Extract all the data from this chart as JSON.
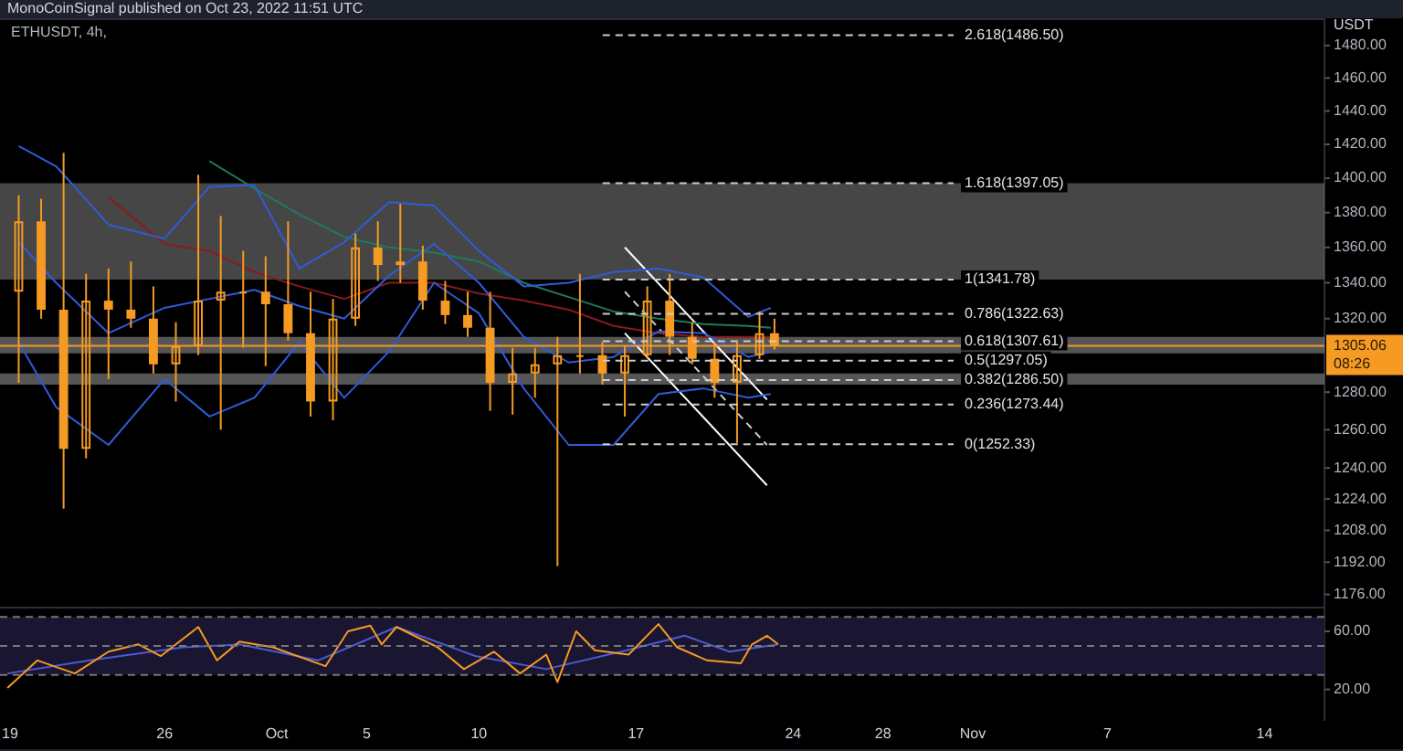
{
  "chart_data": [
    {
      "type": "candlestick",
      "title": "ETHUSDT, 4h,",
      "subtitle": "MonoCoinSignal published on Oct 23, 2022 11:51 UTC",
      "ylabel": "USDT",
      "log": true,
      "tick_labels": "y",
      "color": "#f59a23",
      "x": [
        "2022-09-19T12:00",
        "2022-09-20T12:00",
        "2022-09-21T12:00",
        "2022-09-22T12:00",
        "2022-09-23T12:00",
        "2022-09-24T12:00",
        "2022-09-25T12:00",
        "2022-09-26T12:00",
        "2022-09-27T12:00",
        "2022-09-28T12:00",
        "2022-09-29T12:00",
        "2022-09-30T12:00",
        "2022-10-01T12:00",
        "2022-10-02T12:00",
        "2022-10-03T12:00",
        "2022-10-04T12:00",
        "2022-10-05T12:00",
        "2022-10-06T12:00",
        "2022-10-07T12:00",
        "2022-10-08T12:00",
        "2022-10-09T12:00",
        "2022-10-10T12:00",
        "2022-10-11T12:00",
        "2022-10-12T12:00",
        "2022-10-13T12:00",
        "2022-10-14T12:00",
        "2022-10-15T12:00",
        "2022-10-16T12:00",
        "2022-10-17T12:00",
        "2022-10-18T12:00",
        "2022-10-19T12:00",
        "2022-10-20T12:00",
        "2022-10-21T12:00",
        "2022-10-22T12:00",
        "2022-10-23T04:00"
      ],
      "ohlc": [
        [
          1335,
          1390,
          1285,
          1375
        ],
        [
          1375,
          1388,
          1320,
          1325
        ],
        [
          1325,
          1415,
          1219,
          1250
        ],
        [
          1250,
          1345,
          1245,
          1330
        ],
        [
          1330,
          1348,
          1287,
          1325
        ],
        [
          1325,
          1352,
          1315,
          1320
        ],
        [
          1320,
          1338,
          1290,
          1295
        ],
        [
          1295,
          1318,
          1275,
          1305
        ],
        [
          1305,
          1402,
          1300,
          1330
        ],
        [
          1330,
          1378,
          1260,
          1335
        ],
        [
          1335,
          1358,
          1304,
          1335
        ],
        [
          1335,
          1355,
          1294,
          1328
        ],
        [
          1328,
          1375,
          1308,
          1312
        ],
        [
          1312,
          1335,
          1267,
          1275
        ],
        [
          1275,
          1331,
          1265,
          1320
        ],
        [
          1320,
          1368,
          1316,
          1360
        ],
        [
          1360,
          1375,
          1341,
          1350
        ],
        [
          1350,
          1385,
          1340,
          1352
        ],
        [
          1352,
          1361,
          1325,
          1330
        ],
        [
          1330,
          1341,
          1317,
          1322
        ],
        [
          1322,
          1335,
          1310,
          1315
        ],
        [
          1315,
          1335,
          1270,
          1285
        ],
        [
          1285,
          1304,
          1268,
          1290
        ],
        [
          1290,
          1304,
          1277,
          1295
        ],
        [
          1295,
          1310,
          1190,
          1300
        ],
        [
          1300,
          1345,
          1290,
          1300
        ],
        [
          1300,
          1307,
          1284,
          1290
        ],
        [
          1290,
          1305,
          1267,
          1300
        ],
        [
          1300,
          1338,
          1298,
          1330
        ],
        [
          1330,
          1345,
          1300,
          1310
        ],
        [
          1310,
          1318,
          1295,
          1298
        ],
        [
          1298,
          1307,
          1277,
          1285
        ],
        [
          1285,
          1307,
          1253,
          1300
        ],
        [
          1300,
          1324,
          1298,
          1312
        ],
        [
          1312,
          1320,
          1303,
          1305.06
        ]
      ],
      "series": [
        {
          "type": "line",
          "color": "#2f5bd8",
          "x": [
            "2022-09-19T12:00",
            "2022-09-21T04:00",
            "2022-09-23T12:00",
            "2022-09-26T00:00",
            "2022-09-28T00:00",
            "2022-09-30T00:00",
            "2022-10-02T00:00",
            "2022-10-04T00:00",
            "2022-10-06T00:00",
            "2022-10-08T00:00",
            "2022-10-10T00:00",
            "2022-10-12T00:00",
            "2022-10-14T00:00",
            "2022-10-16T00:00",
            "2022-10-18T00:00",
            "2022-10-20T00:00",
            "2022-10-22T00:00",
            "2022-10-23T00:00"
          ],
          "values": [
            1419,
            1407,
            1373,
            1365,
            1395,
            1396,
            1348,
            1363,
            1386,
            1384,
            1358,
            1338,
            1340,
            1346,
            1348,
            1343,
            1321,
            1326
          ]
        },
        {
          "type": "line",
          "color": "#2f5bd8",
          "x": [
            "2022-09-19T12:00",
            "2022-09-21T04:00",
            "2022-09-23T12:00",
            "2022-09-26T00:00",
            "2022-09-28T00:00",
            "2022-09-30T00:00",
            "2022-10-02T00:00",
            "2022-10-04T00:00",
            "2022-10-06T00:00",
            "2022-10-08T00:00",
            "2022-10-10T00:00",
            "2022-10-12T00:00",
            "2022-10-14T00:00",
            "2022-10-16T00:00",
            "2022-10-18T00:00",
            "2022-10-20T00:00",
            "2022-10-22T00:00",
            "2022-10-23T00:00"
          ],
          "values": [
            1363,
            1340,
            1312,
            1326,
            1331,
            1336,
            1327,
            1320,
            1344,
            1362,
            1340,
            1310,
            1296,
            1299,
            1313,
            1312,
            1299,
            1302
          ]
        },
        {
          "type": "line",
          "color": "#2f5bd8",
          "x": [
            "2022-09-19T12:00",
            "2022-09-21T04:00",
            "2022-09-23T12:00",
            "2022-09-26T00:00",
            "2022-09-28T00:00",
            "2022-09-30T00:00",
            "2022-10-02T00:00",
            "2022-10-04T00:00",
            "2022-10-06T00:00",
            "2022-10-08T00:00",
            "2022-10-10T00:00",
            "2022-10-12T00:00",
            "2022-10-14T00:00",
            "2022-10-16T00:00",
            "2022-10-18T00:00",
            "2022-10-20T00:00",
            "2022-10-22T00:00",
            "2022-10-23T00:00"
          ],
          "values": [
            1307,
            1272,
            1252,
            1287,
            1267,
            1277,
            1307,
            1277,
            1302,
            1340,
            1323,
            1282,
            1252,
            1252,
            1279,
            1282,
            1277,
            1279
          ]
        },
        {
          "type": "line",
          "color": "#8b1a1a",
          "x": [
            "2022-09-23T12:00",
            "2022-09-26T00:00",
            "2022-09-28T00:00",
            "2022-09-30T00:00",
            "2022-10-02T00:00",
            "2022-10-04T00:00",
            "2022-10-06T00:00",
            "2022-10-08T00:00",
            "2022-10-10T00:00",
            "2022-10-12T00:00",
            "2022-10-14T00:00",
            "2022-10-16T00:00",
            "2022-10-18T00:00",
            "2022-10-20T00:00",
            "2022-10-22T00:00",
            "2022-10-23T00:00"
          ],
          "values": [
            1389,
            1362,
            1358,
            1346,
            1338,
            1331,
            1340,
            1340,
            1334,
            1330,
            1325,
            1316,
            1312,
            1310,
            1310,
            1310
          ]
        },
        {
          "type": "line",
          "color": "#1e7a5a",
          "x": [
            "2022-09-28T00:00",
            "2022-09-30T00:00",
            "2022-10-02T00:00",
            "2022-10-04T00:00",
            "2022-10-06T00:00",
            "2022-10-08T00:00",
            "2022-10-10T00:00",
            "2022-10-12T00:00",
            "2022-10-14T00:00",
            "2022-10-16T00:00",
            "2022-10-18T00:00",
            "2022-10-20T00:00",
            "2022-10-22T00:00",
            "2022-10-23T00:00"
          ],
          "values": [
            1410,
            1394,
            1379,
            1366,
            1360,
            1357,
            1352,
            1340,
            1332,
            1324,
            1320,
            1317,
            1316,
            1315
          ]
        },
        {
          "type": "line",
          "color": "#ffffff",
          "x": [
            "2022-10-16T12:00",
            "2022-10-22T20:00"
          ],
          "values": [
            1360,
            1276
          ]
        },
        {
          "type": "line",
          "color": "#ffffff",
          "x": [
            "2022-10-16T12:00",
            "2022-10-22T20:00"
          ],
          "values": [
            1312,
            1231
          ]
        },
        {
          "type": "line",
          "color": "#cccccc",
          "line_style": "dashed",
          "x": [
            "2022-10-16T12:00",
            "2022-10-22T20:00"
          ],
          "values": [
            1335,
            1252
          ]
        }
      ],
      "xlim": [
        "2022-09-18T16:00",
        "2022-11-16T16:00"
      ],
      "ylim": [
        1170,
        1497
      ],
      "yticks": [
        {
          "value": 1176,
          "label": "1176.00"
        },
        {
          "value": 1192,
          "label": "1192.00"
        },
        {
          "value": 1208,
          "label": "1208.00"
        },
        {
          "value": 1224,
          "label": "1224.00"
        },
        {
          "value": 1240,
          "label": "1240.00"
        },
        {
          "value": 1260,
          "label": "1260.00"
        },
        {
          "value": 1280,
          "label": "1280.00"
        },
        {
          "value": 1320,
          "label": "1320.00"
        },
        {
          "value": 1340,
          "label": "1340.00"
        },
        {
          "value": 1360,
          "label": "1360.00"
        },
        {
          "value": 1380,
          "label": "1380.00"
        },
        {
          "value": 1400,
          "label": "1400.00"
        },
        {
          "value": 1420,
          "label": "1420.00"
        },
        {
          "value": 1440,
          "label": "1440.00"
        },
        {
          "value": 1460,
          "label": "1460.00"
        },
        {
          "value": 1480,
          "label": "1480.00"
        }
      ],
      "ref_lines": [
        {
          "axis": "y",
          "value": 1486.5,
          "label": "2.618(1486.50)",
          "color": "#cccccc",
          "line_style": "dashed"
        },
        {
          "axis": "y",
          "value": 1397.05,
          "label": "1.618(1397.05)",
          "color": "#cccccc",
          "line_style": "dashed"
        },
        {
          "axis": "y",
          "value": 1341.78,
          "label": "1(1341.78)",
          "color": "#cccccc",
          "line_style": "dashed"
        },
        {
          "axis": "y",
          "value": 1322.63,
          "label": "0.786(1322.63)",
          "color": "#cccccc",
          "line_style": "dashed"
        },
        {
          "axis": "y",
          "value": 1307.61,
          "label": "0.618(1307.61)",
          "color": "#cccccc",
          "line_style": "dashed"
        },
        {
          "axis": "y",
          "value": 1297.05,
          "label": "0.5(1297.05)",
          "color": "#cccccc",
          "line_style": "dashed"
        },
        {
          "axis": "y",
          "value": 1286.5,
          "label": "0.382(1286.50)",
          "color": "#cccccc",
          "line_style": "dashed"
        },
        {
          "axis": "y",
          "value": 1273.44,
          "label": "0.236(1273.44)",
          "color": "#cccccc",
          "line_style": "dashed"
        },
        {
          "axis": "y",
          "value": 1252.33,
          "label": "0(1252.33)",
          "color": "#cccccc",
          "line_style": "dashed"
        },
        {
          "axis": "y",
          "value": 1305.06,
          "label": "1305.06",
          "color": "#f59a23",
          "line_style": "solid"
        }
      ],
      "bands": [
        {
          "axis": "y",
          "from": 1341.78,
          "to": 1397.05,
          "color": "#808080"
        },
        {
          "axis": "y",
          "from": 1301,
          "to": 1310,
          "color": "#9a9a9a"
        },
        {
          "axis": "y",
          "from": 1284,
          "to": 1290,
          "color": "#9a9a9a"
        }
      ],
      "annotations": [
        "08:26"
      ]
    },
    {
      "type": "line",
      "series": [
        {
          "color": "#f59a23",
          "x": [
            "2022-09-19T00:00",
            "2022-09-20T08:00",
            "2022-09-22T00:00",
            "2022-09-23T12:00",
            "2022-09-24T20:00",
            "2022-09-25T20:00",
            "2022-09-27T12:00",
            "2022-09-28T08:00",
            "2022-09-29T08:00",
            "2022-09-30T20:00",
            "2022-10-03T04:00",
            "2022-10-04T04:00",
            "2022-10-05T04:00",
            "2022-10-05T16:00",
            "2022-10-06T08:00",
            "2022-10-08T04:00",
            "2022-10-09T08:00",
            "2022-10-10T16:00",
            "2022-10-11T20:00",
            "2022-10-13T00:00",
            "2022-10-13T12:00",
            "2022-10-14T08:00",
            "2022-10-15T04:00",
            "2022-10-16T16:00",
            "2022-10-18T00:00",
            "2022-10-18T20:00",
            "2022-10-20T04:00",
            "2022-10-21T16:00",
            "2022-10-22T04:00",
            "2022-10-22T20:00",
            "2022-10-23T08:00"
          ],
          "values": [
            21,
            40,
            31,
            46,
            51,
            43,
            63,
            40,
            53,
            49,
            36,
            60,
            64,
            51,
            63,
            49,
            34,
            46,
            31,
            44,
            25,
            60,
            47,
            44,
            65,
            49,
            40,
            38,
            51,
            57,
            51
          ]
        },
        {
          "color": "#4a5bd4",
          "x": [
            "2022-09-19T00:00",
            "2022-09-22T16:00",
            "2022-09-26T20:00",
            "2022-09-29T08:00",
            "2022-10-02T20:00",
            "2022-10-06T08:00",
            "2022-10-09T20:00",
            "2022-10-13T00:00",
            "2022-10-16T08:00",
            "2022-10-19T04:00",
            "2022-10-21T04:00",
            "2022-10-23T08:00"
          ],
          "values": [
            31,
            40,
            49,
            51,
            40,
            63,
            43,
            34,
            46,
            57,
            46,
            51
          ]
        }
      ],
      "xlim": [
        "2022-09-18T16:00",
        "2022-11-16T16:00"
      ],
      "xticks": [
        {
          "value": "2022-09-19",
          "label": "19"
        },
        {
          "value": "2022-09-26",
          "label": "26"
        },
        {
          "value": "2022-10-01",
          "label": "Oct"
        },
        {
          "value": "2022-10-05",
          "label": "5"
        },
        {
          "value": "2022-10-10",
          "label": "10"
        },
        {
          "value": "2022-10-17",
          "label": "17"
        },
        {
          "value": "2022-10-24",
          "label": "24"
        },
        {
          "value": "2022-10-28",
          "label": "28"
        },
        {
          "value": "2022-11-01",
          "label": "Nov"
        },
        {
          "value": "2022-11-07",
          "label": "7"
        },
        {
          "value": "2022-11-14",
          "label": "14"
        }
      ],
      "ylim": [
        -1,
        77
      ],
      "yticks": [
        {
          "value": 20,
          "label": "20.00"
        },
        {
          "value": 60,
          "label": "60.00"
        }
      ],
      "ref_lines": [
        {
          "axis": "y",
          "value": 70,
          "color": "#777777",
          "line_style": "dashed"
        },
        {
          "axis": "y",
          "value": 50,
          "color": "#777777",
          "line_style": "dashed"
        },
        {
          "axis": "y",
          "value": 30,
          "color": "#777777",
          "line_style": "dashed"
        }
      ],
      "bands": [
        {
          "axis": "y",
          "from": 30,
          "to": 70,
          "color": "#1a1530"
        }
      ]
    }
  ]
}
